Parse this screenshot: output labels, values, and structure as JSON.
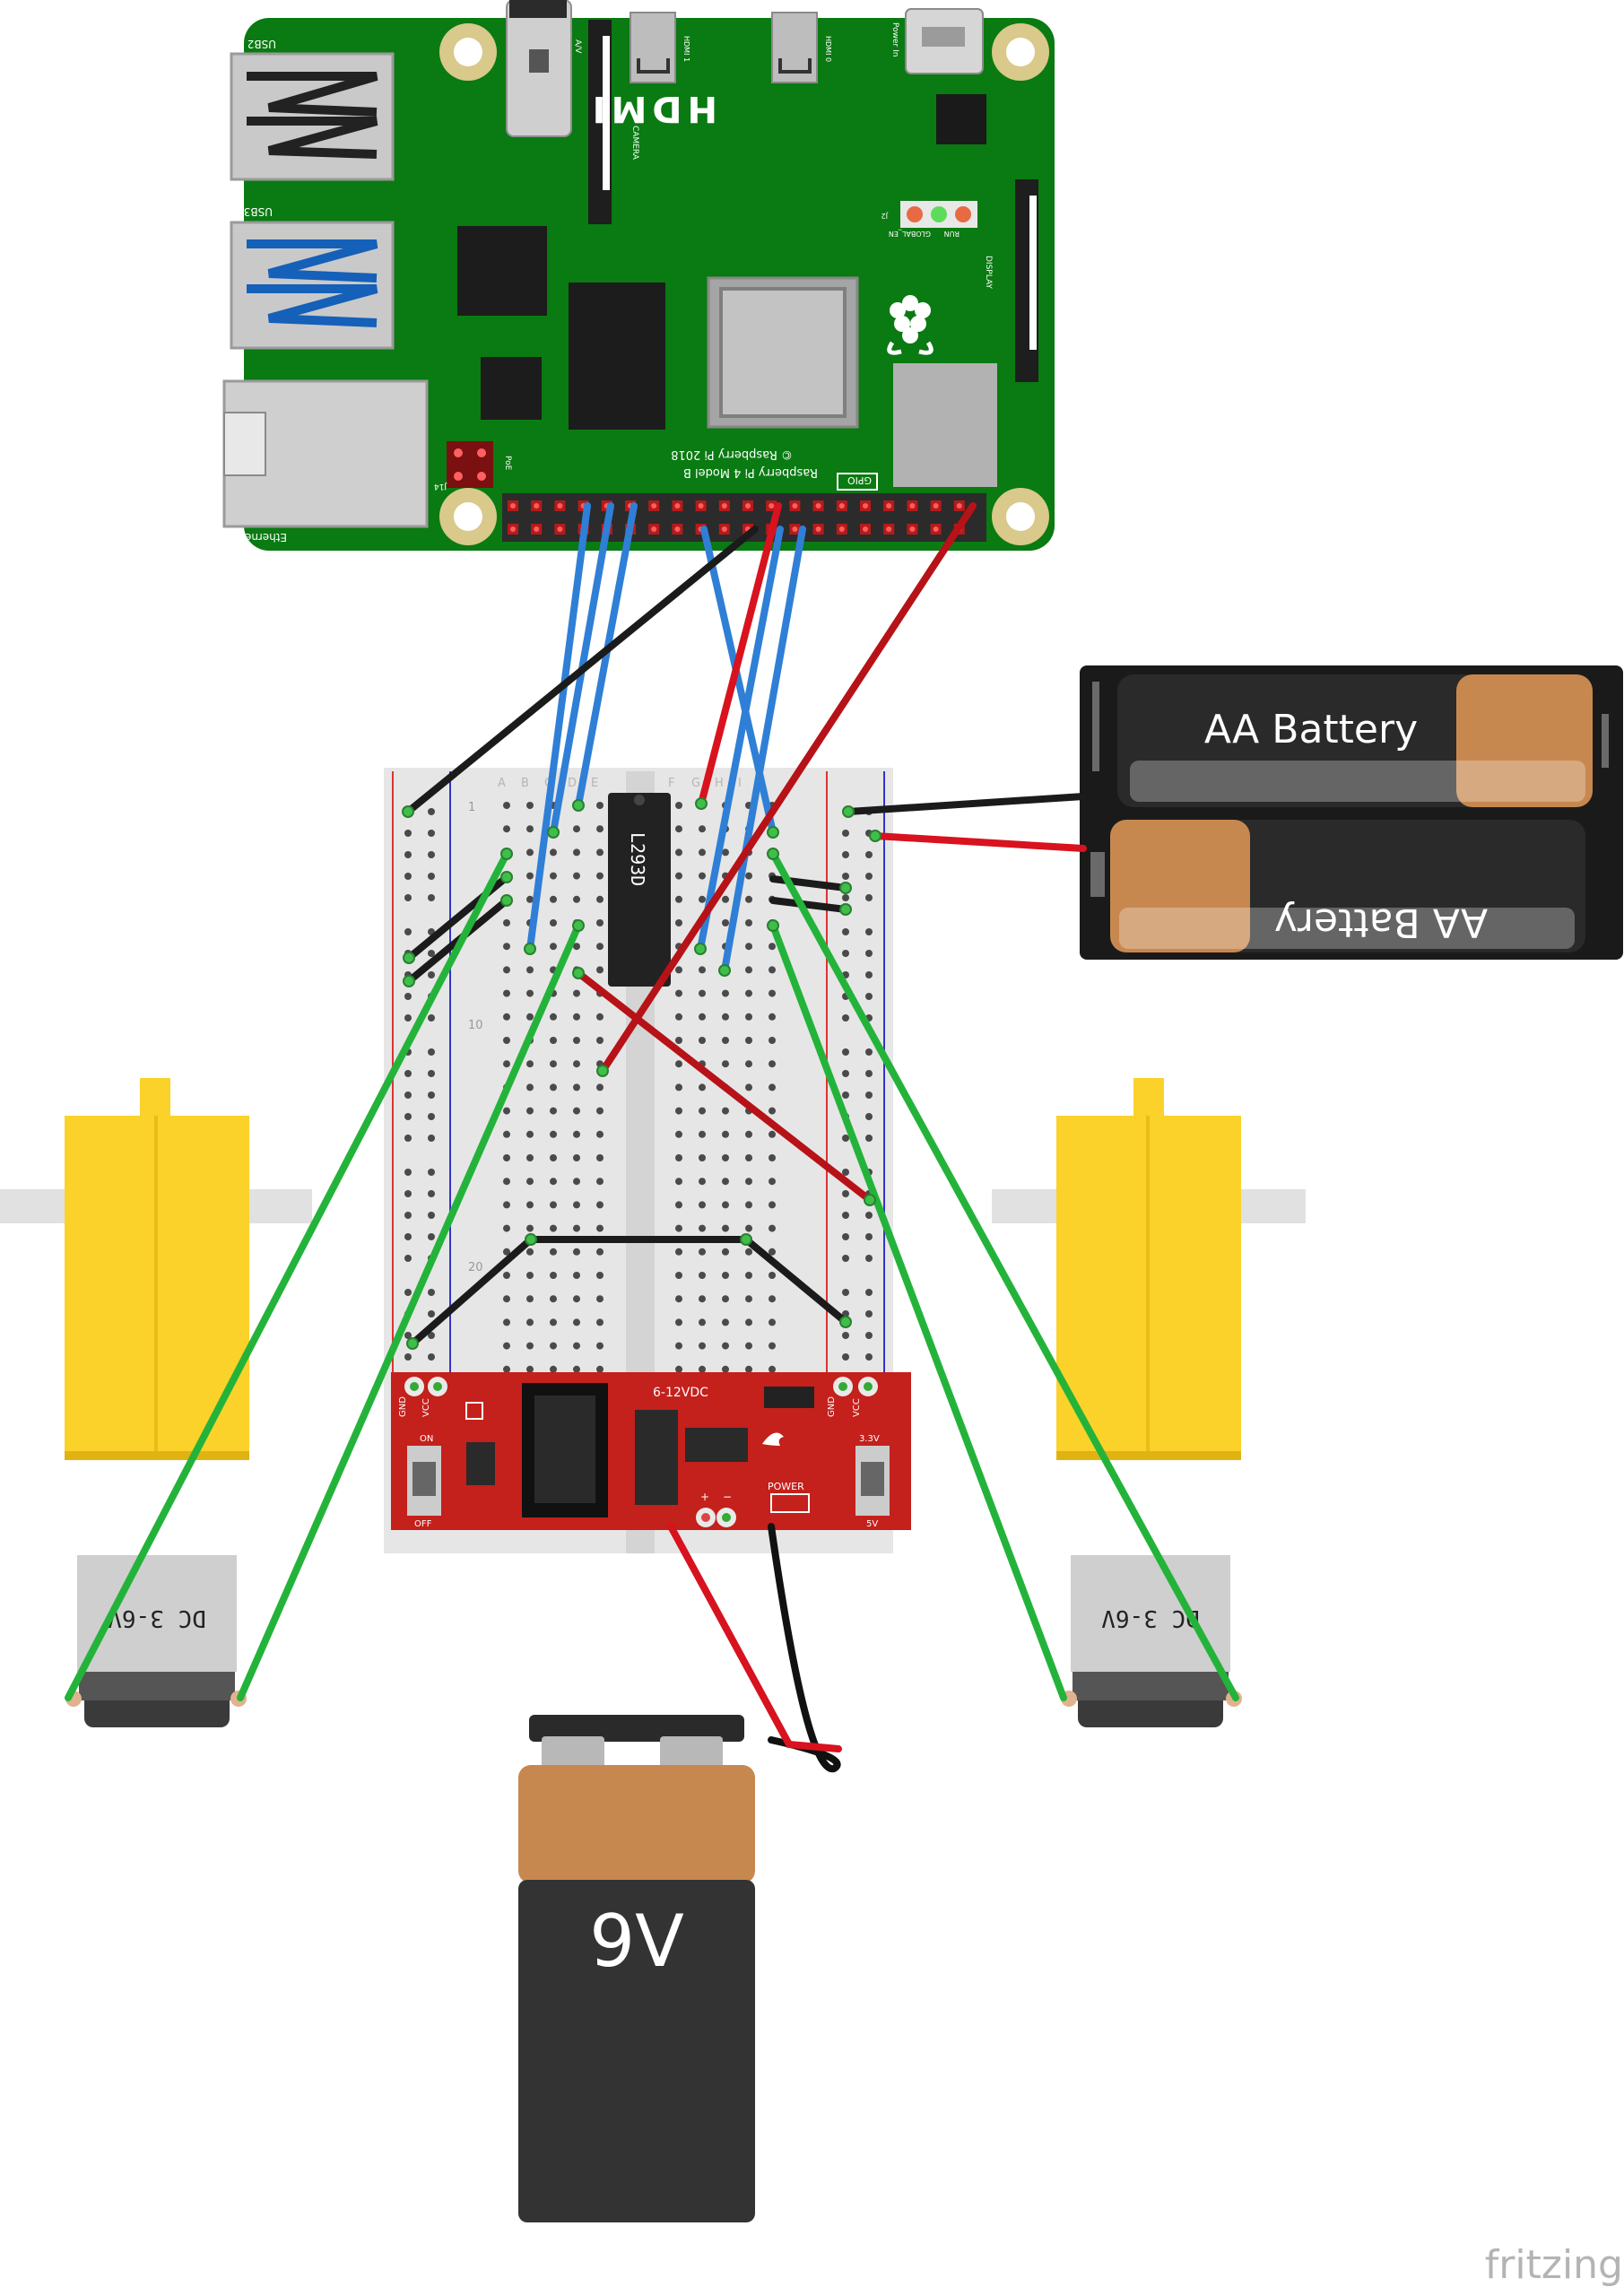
{
  "colors": {
    "pcb_green": "#0a7a12",
    "breadboard": "#e6e6e6",
    "power_module": "#c4201c",
    "motor_yellow": "#fbd22a",
    "battery_black": "#1a1a1a",
    "battery_copper": "#c7884f",
    "wire_blue": "#2f7fd6",
    "wire_red": "#d8121e",
    "wire_black": "#1b1b1b",
    "wire_green": "#24b33a"
  },
  "raspberry_pi": {
    "hdmi": "HDMI",
    "model_line1": "Raspberry Pi 4 Model B",
    "model_line2": "© Raspberry Pi 2018",
    "gpio": "GPIO",
    "usb2": "USB2",
    "usb3": "USB3",
    "ethernet": "Ethernet",
    "camera": "CAMERA",
    "display": "DISPLAY",
    "power_in": "Power In",
    "hdmi1": "HDMI 1",
    "hdmi0": "HDMI 0",
    "av": "A/V",
    "run": "RUN",
    "global_en": "GLOBAL_EN",
    "j2": "J2",
    "poe": "PoE",
    "j14": "J14"
  },
  "breadboard": {
    "row_1": "1",
    "row_10": "10",
    "row_20": "20",
    "col_a": "A",
    "col_b": "B",
    "col_c": "C",
    "col_d": "D",
    "col_e": "E",
    "col_f": "F",
    "col_g": "G",
    "col_h": "H",
    "col_i": "I",
    "col_j": "J"
  },
  "ic_chip": {
    "label": "L293D"
  },
  "power_module": {
    "input": "6-12VDC",
    "gnd_left": "GND",
    "vcc_left": "VCC",
    "gnd_right": "GND",
    "vcc_right": "VCC",
    "on": "ON",
    "off": "OFF",
    "v33": "3.3V",
    "v5": "5V",
    "power": "POWER",
    "plus": "+",
    "minus": "−"
  },
  "aa_pack": {
    "top_label": "AA Battery",
    "bottom_label": "AA Battery"
  },
  "motor_left": {
    "label": "DC 3-6V"
  },
  "motor_right": {
    "label": "DC 3-6V"
  },
  "battery_9v": {
    "label": "9V"
  },
  "watermark": "fritzing"
}
